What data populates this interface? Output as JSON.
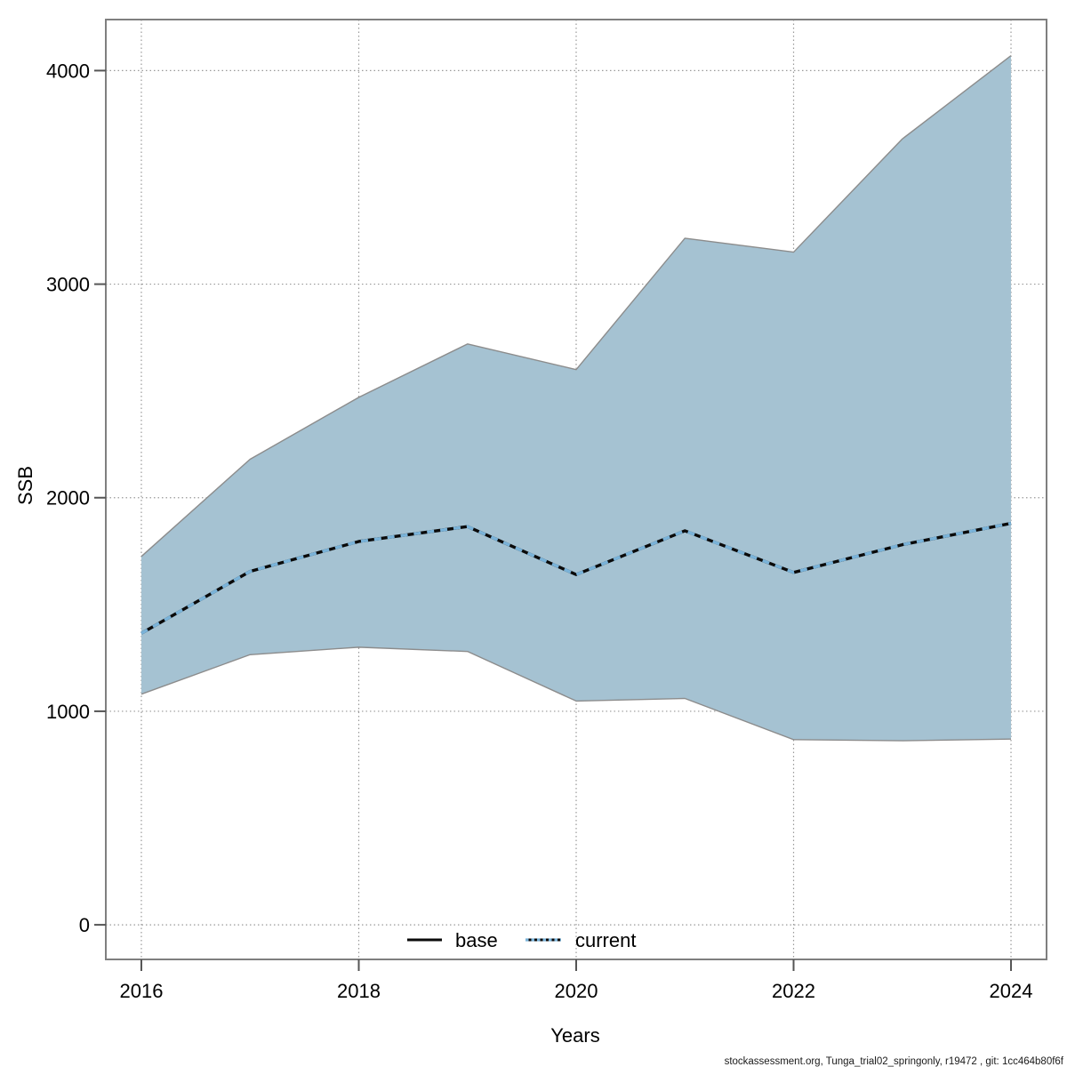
{
  "footer": {
    "text": "stockassessment.org, Tunga_trial02_springonly, r19472 , git: 1cc464b80f6f"
  },
  "legend": {
    "position": "bottom-center-inside",
    "items": [
      {
        "label": "base",
        "line_style": "solid-black"
      },
      {
        "label": "current",
        "line_style": "dashed-blue-over-dark"
      }
    ]
  },
  "chart_data": {
    "type": "area",
    "title": "",
    "xlabel": "Years",
    "ylabel": "SSB",
    "x": [
      2016,
      2017,
      2018,
      2019,
      2020,
      2021,
      2022,
      2023,
      2024
    ],
    "series": [
      {
        "name": "current",
        "kind": "median-line",
        "values": [
          1365,
          1655,
          1795,
          1865,
          1640,
          1845,
          1650,
          1780,
          1880
        ]
      },
      {
        "name": "base",
        "kind": "median-line-coincident-underlay",
        "values": [
          1365,
          1655,
          1795,
          1865,
          1640,
          1845,
          1650,
          1780,
          1880
        ]
      }
    ],
    "band": {
      "name": "confidence-interval",
      "upper": [
        1725,
        2180,
        2470,
        2720,
        2600,
        3215,
        3150,
        3680,
        4070
      ],
      "lower": [
        1080,
        1265,
        1300,
        1280,
        1048,
        1060,
        867,
        862,
        870
      ]
    },
    "x_ticks": {
      "values": [
        2016,
        2018,
        2020,
        2022,
        2024
      ],
      "labels": [
        "2016",
        "2018",
        "2020",
        "2022",
        "2024"
      ]
    },
    "y_ticks": {
      "values": [
        0,
        1000,
        2000,
        3000,
        4000
      ],
      "labels": [
        "0",
        "1000",
        "2000",
        "3000",
        "4000"
      ]
    },
    "xlim": [
      2015.673,
      2024.327
    ],
    "ylim": [
      -162,
      4239
    ],
    "grid": "dotted",
    "colors": {
      "band_fill": "#a5c2d2",
      "band_edge": "#8c8c8c",
      "base_line": "#0a0a0a",
      "current_line": "#7ab3d9",
      "grid": "#999999",
      "border": "#7f7f7f",
      "tick": "#555555"
    }
  }
}
